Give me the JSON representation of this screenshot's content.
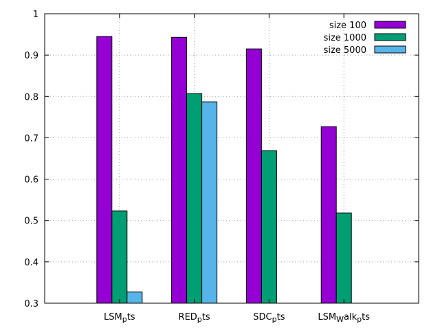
{
  "chart_data": {
    "type": "bar",
    "categories": [
      "LSM_pts",
      "RED_pts",
      "SDC_pts",
      "LSM_Walk_pts"
    ],
    "category_parts": [
      {
        "base": "LSM",
        "sub": "p",
        "rest": "ts"
      },
      {
        "base": "RED",
        "sub": "p",
        "rest": "ts"
      },
      {
        "base": "SDC",
        "sub": "p",
        "rest": "ts"
      },
      {
        "base": "LSM",
        "sub": "W",
        "rest": "alk",
        "sub2": "p",
        "rest2": "ts"
      }
    ],
    "series": [
      {
        "name": "size 100",
        "color": "#9400d3",
        "values": [
          0.945,
          0.943,
          0.915,
          0.727
        ]
      },
      {
        "name": "size 1000",
        "color": "#009e73",
        "values": [
          0.523,
          0.807,
          0.669,
          0.518
        ]
      },
      {
        "name": "size 5000",
        "color": "#56b4e9",
        "values": [
          0.327,
          0.787,
          null,
          null
        ]
      }
    ],
    "title": "",
    "xlabel": "",
    "ylabel": "",
    "ylim": [
      0.3,
      1.0
    ],
    "yticks": [
      "0.3",
      "0.4",
      "0.5",
      "0.6",
      "0.7",
      "0.8",
      "0.9",
      "1"
    ],
    "grid": true,
    "legend_position": "top-right"
  }
}
